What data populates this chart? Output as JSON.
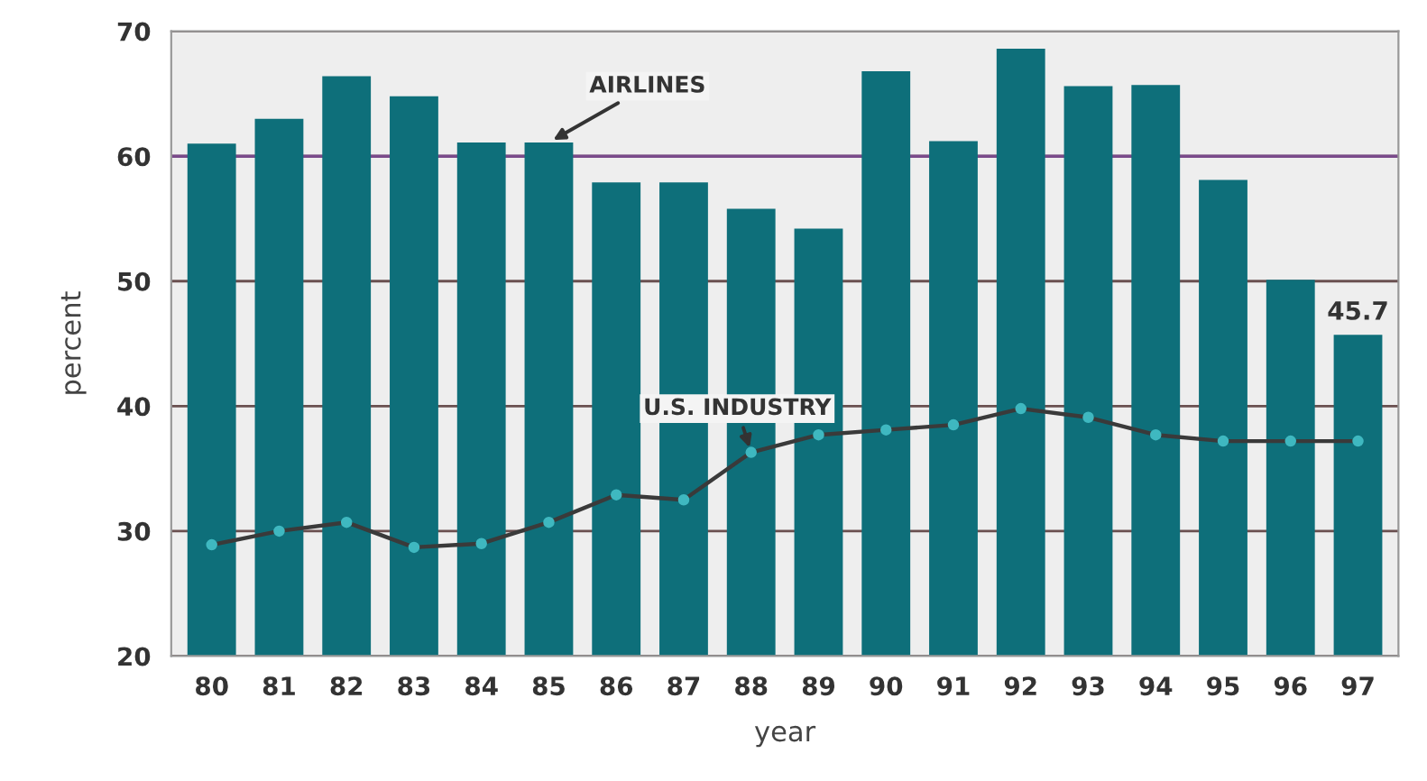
{
  "chart_data": {
    "type": "bar",
    "xlabel": "year",
    "ylabel": "percent",
    "categories": [
      "80",
      "81",
      "82",
      "83",
      "84",
      "85",
      "86",
      "87",
      "88",
      "89",
      "90",
      "91",
      "92",
      "93",
      "94",
      "95",
      "96",
      "97"
    ],
    "series": [
      {
        "color": "#0e6f7a",
        "values": [
          61.0,
          63.0,
          66.4,
          64.8,
          61.1,
          61.1,
          57.9,
          57.9,
          55.8,
          54.2,
          66.8,
          61.2,
          68.6,
          65.6,
          65.7,
          58.1,
          50.1,
          45.7
        ],
        "value_labels": [
          null,
          null,
          null,
          null,
          null,
          null,
          null,
          null,
          null,
          null,
          null,
          null,
          null,
          null,
          null,
          null,
          null,
          "45.7"
        ]
      },
      {
        "type": "line",
        "color": "#3a3a3a",
        "marker": "circle",
        "values": [
          28.9,
          30.0,
          30.7,
          28.7,
          29.0,
          30.7,
          32.9,
          32.5,
          36.3,
          37.7,
          38.1,
          38.5,
          39.8,
          39.1,
          37.7,
          37.2,
          37.2,
          37.2
        ]
      }
    ],
    "annotations": [
      {
        "text": "AIRLINES",
        "x": "85",
        "y": 61.1
      },
      {
        "text": "U.S. INDUSTRY",
        "x": "88",
        "y": 36.3
      }
    ],
    "ref_lines": [
      {
        "axis": "y",
        "value": 60,
        "color": "#7a4a8a"
      }
    ],
    "ylim": [
      20,
      70
    ],
    "yticks": [
      20,
      30,
      40,
      50,
      60,
      70
    ],
    "grid": "y",
    "legend": false
  }
}
